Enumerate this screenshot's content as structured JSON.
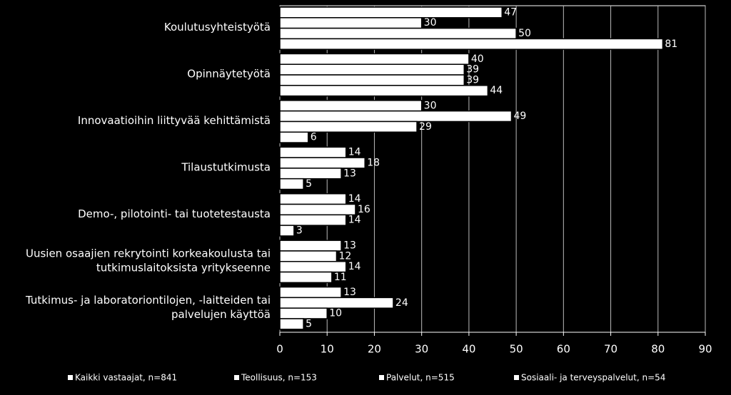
{
  "chart_data": {
    "type": "bar",
    "orientation": "horizontal",
    "categories": [
      [
        "Koulutusyhteistyötä"
      ],
      [
        "Opinnäytetyötä"
      ],
      [
        "Innovaatioihin liittyvää kehittämistä"
      ],
      [
        "Tilaustutkimusta"
      ],
      [
        "Demo-, pilotointi- tai tuotetestausta"
      ],
      [
        "Uusien osaajien rekrytointi korkeakoulusta tai",
        "tutkimuslaitoksista yritykseenne"
      ],
      [
        "Tutkimus- ja laboratoriontilojen, -laitteiden tai",
        "palvelujen käyttöä"
      ]
    ],
    "series": [
      {
        "name": "Kaikki vastaajat, n=841",
        "color": "#ffffff",
        "values": [
          47,
          40,
          30,
          14,
          14,
          13,
          13
        ]
      },
      {
        "name": "Teollisuus, n=153",
        "color": "#ffffff",
        "values": [
          30,
          39,
          49,
          18,
          16,
          12,
          24
        ]
      },
      {
        "name": "Palvelut, n=515",
        "color": "#ffffff",
        "values": [
          50,
          39,
          29,
          13,
          14,
          14,
          10
        ]
      },
      {
        "name": "Sosiaali- ja terveyspalvelut, n=54",
        "color": "#ffffff",
        "values": [
          81,
          44,
          6,
          5,
          3,
          11,
          5
        ]
      }
    ],
    "xlim": [
      0,
      90
    ],
    "xticks": [
      0,
      10,
      20,
      30,
      40,
      50,
      60,
      70,
      80,
      90
    ],
    "grid": true,
    "legend": "bottom"
  }
}
